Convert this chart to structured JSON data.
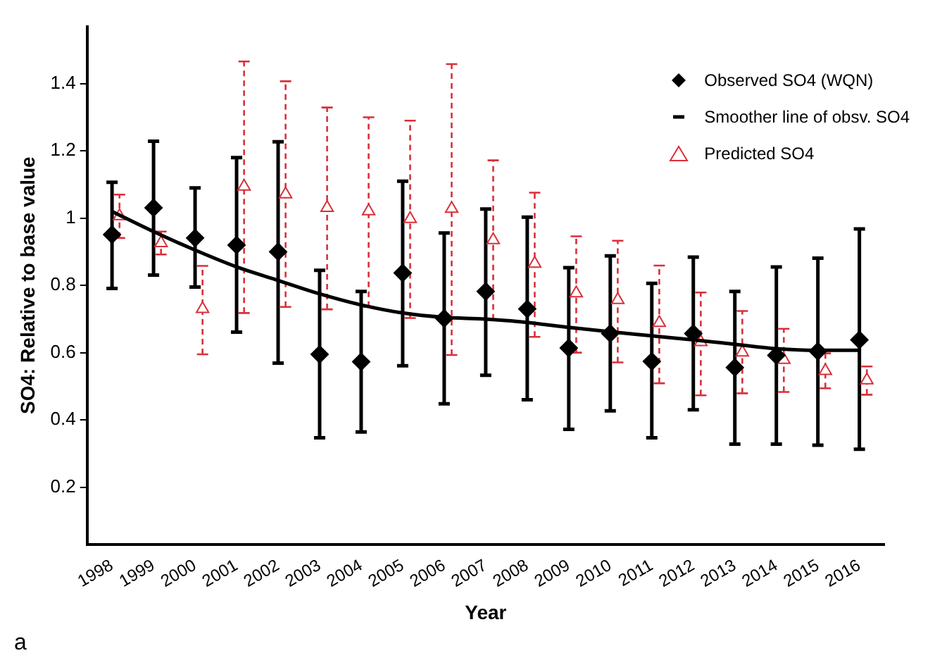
{
  "chart_data": {
    "type": "scatter",
    "xlabel": "Year",
    "ylabel": "SO4: Relative to base value",
    "categories": [
      "1998",
      "1999",
      "2000",
      "2001",
      "2002",
      "2003",
      "2004",
      "2005",
      "2006",
      "2007",
      "2008",
      "2009",
      "2010",
      "2011",
      "2012",
      "2013",
      "2014",
      "2015",
      "2016"
    ],
    "ylim": [
      0.03,
      1.57
    ],
    "yticks": [
      0.2,
      0.4,
      0.6,
      0.8,
      1,
      1.2,
      1.4
    ],
    "grid": false,
    "legend": "top right",
    "annotations": [
      "a"
    ],
    "series": [
      {
        "name": "Observed SO4 (WQN)",
        "marker": "diamond",
        "color": "#000000",
        "values": [
          0.951,
          1.031,
          0.941,
          0.92,
          0.9,
          0.595,
          0.573,
          0.837,
          0.702,
          0.782,
          0.73,
          0.614,
          0.657,
          0.574,
          0.657,
          0.556,
          0.592,
          0.604,
          0.638
        ],
        "errors": [
          [
            0.791,
            1.107
          ],
          [
            0.831,
            1.229
          ],
          [
            0.795,
            1.09
          ],
          [
            0.661,
            1.18
          ],
          [
            0.569,
            1.227
          ],
          [
            0.347,
            0.845
          ],
          [
            0.364,
            0.782
          ],
          [
            0.561,
            1.11
          ],
          [
            0.448,
            0.956
          ],
          [
            0.533,
            1.027
          ],
          [
            0.46,
            1.003
          ],
          [
            0.372,
            0.853
          ],
          [
            0.427,
            0.888
          ],
          [
            0.347,
            0.806
          ],
          [
            0.43,
            0.884
          ],
          [
            0.328,
            0.782
          ],
          [
            0.328,
            0.855
          ],
          [
            0.325,
            0.881
          ],
          [
            0.313,
            0.968
          ]
        ]
      },
      {
        "name": "Smoother line of obsv. SO4",
        "type": "line",
        "marker": "none",
        "color": "#000000",
        "values": [
          1.02,
          0.96,
          0.905,
          0.855,
          0.815,
          0.775,
          0.742,
          0.718,
          0.705,
          0.7,
          0.69,
          0.675,
          0.662,
          0.65,
          0.638,
          0.625,
          0.612,
          0.607,
          0.607
        ]
      },
      {
        "name": "Predicted SO4",
        "marker": "triangle",
        "line_style": "dashed",
        "color": "#d9303a",
        "values": [
          1.006,
          0.926,
          0.73,
          1.094,
          1.071,
          1.031,
          1.021,
          0.998,
          1.028,
          0.935,
          0.865,
          0.777,
          0.757,
          0.689,
          0.632,
          0.601,
          0.579,
          0.546,
          0.518
        ],
        "errors": [
          [
            0.941,
            1.07
          ],
          [
            0.892,
            0.96
          ],
          [
            0.595,
            0.858
          ],
          [
            0.718,
            1.466
          ],
          [
            0.736,
            1.407
          ],
          [
            0.729,
            1.329
          ],
          [
            0.736,
            1.3
          ],
          [
            0.703,
            1.29
          ],
          [
            0.593,
            1.458
          ],
          [
            0.698,
            1.172
          ],
          [
            0.647,
            1.076
          ],
          [
            0.6,
            0.946
          ],
          [
            0.571,
            0.933
          ],
          [
            0.509,
            0.859
          ],
          [
            0.473,
            0.779
          ],
          [
            0.479,
            0.724
          ],
          [
            0.483,
            0.671
          ],
          [
            0.494,
            0.598
          ],
          [
            0.475,
            0.559
          ]
        ]
      }
    ]
  }
}
